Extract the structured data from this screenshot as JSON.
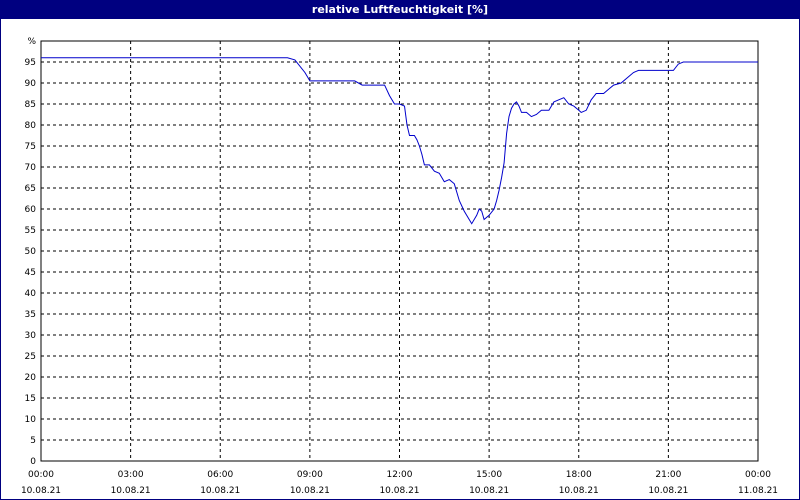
{
  "window": {
    "title": "relative Luftfeuchtigkeit [%]"
  },
  "chart_data": {
    "type": "line",
    "title": "relative Luftfeuchtigkeit [%]",
    "ylabel": "%",
    "ylim": [
      0,
      100
    ],
    "xlim": [
      "2021-08-10 00:00",
      "2021-08-11 00:00"
    ],
    "grid": true,
    "colors": {
      "line": "#0000cc",
      "grid": "#000000",
      "title_bg": "#000080"
    },
    "y_ticks": [
      0,
      5,
      10,
      15,
      20,
      25,
      30,
      35,
      40,
      45,
      50,
      55,
      60,
      65,
      70,
      75,
      80,
      85,
      90,
      95
    ],
    "x_ticks": [
      {
        "time": "00:00",
        "date": "10.08.21"
      },
      {
        "time": "03:00",
        "date": "10.08.21"
      },
      {
        "time": "06:00",
        "date": "10.08.21"
      },
      {
        "time": "09:00",
        "date": "10.08.21"
      },
      {
        "time": "12:00",
        "date": "10.08.21"
      },
      {
        "time": "15:00",
        "date": "10.08.21"
      },
      {
        "time": "18:00",
        "date": "10.08.21"
      },
      {
        "time": "21:00",
        "date": "10.08.21"
      },
      {
        "time": "00:00",
        "date": "11.08.21"
      }
    ],
    "series": [
      {
        "points": [
          [
            "00:00",
            96
          ],
          [
            "08:15",
            96
          ],
          [
            "08:30",
            95.5
          ],
          [
            "08:50",
            92.5
          ],
          [
            "09:00",
            90.5
          ],
          [
            "10:00",
            90.5
          ],
          [
            "10:30",
            90.5
          ],
          [
            "10:45",
            89.5
          ],
          [
            "11:00",
            89.5
          ],
          [
            "11:30",
            89.5
          ],
          [
            "11:40",
            87
          ],
          [
            "11:50",
            85
          ],
          [
            "12:00",
            85
          ],
          [
            "12:10",
            84.5
          ],
          [
            "12:15",
            80
          ],
          [
            "12:20",
            77.5
          ],
          [
            "12:30",
            77.5
          ],
          [
            "12:35",
            76.5
          ],
          [
            "12:40",
            75
          ],
          [
            "12:45",
            73
          ],
          [
            "12:50",
            70.5
          ],
          [
            "13:00",
            70.5
          ],
          [
            "13:10",
            69
          ],
          [
            "13:20",
            68.5
          ],
          [
            "13:30",
            66.5
          ],
          [
            "13:40",
            67
          ],
          [
            "13:50",
            66
          ],
          [
            "14:00",
            62
          ],
          [
            "14:10",
            59.5
          ],
          [
            "14:20",
            57.5
          ],
          [
            "14:25",
            56.5
          ],
          [
            "14:35",
            58.5
          ],
          [
            "14:40",
            60
          ],
          [
            "14:45",
            59.5
          ],
          [
            "14:50",
            57.5
          ],
          [
            "15:00",
            58.5
          ],
          [
            "15:10",
            60
          ],
          [
            "15:15",
            62
          ],
          [
            "15:20",
            64.5
          ],
          [
            "15:25",
            67.5
          ],
          [
            "15:30",
            71
          ],
          [
            "15:35",
            78
          ],
          [
            "15:40",
            82
          ],
          [
            "15:45",
            84
          ],
          [
            "15:50",
            85
          ],
          [
            "15:55",
            85.5
          ],
          [
            "16:00",
            84.5
          ],
          [
            "16:05",
            83
          ],
          [
            "16:15",
            83
          ],
          [
            "16:25",
            82
          ],
          [
            "16:35",
            82.5
          ],
          [
            "16:45",
            83.5
          ],
          [
            "17:00",
            83.5
          ],
          [
            "17:10",
            85.5
          ],
          [
            "17:20",
            86
          ],
          [
            "17:30",
            86.5
          ],
          [
            "17:40",
            85
          ],
          [
            "17:50",
            84.5
          ],
          [
            "18:00",
            83.5
          ],
          [
            "18:05",
            83
          ],
          [
            "18:15",
            83.5
          ],
          [
            "18:25",
            86
          ],
          [
            "18:35",
            87.5
          ],
          [
            "18:50",
            87.5
          ],
          [
            "19:00",
            88.5
          ],
          [
            "19:10",
            89.5
          ],
          [
            "19:25",
            90
          ],
          [
            "19:40",
            91.5
          ],
          [
            "19:50",
            92.5
          ],
          [
            "20:00",
            93
          ],
          [
            "21:00",
            93
          ],
          [
            "21:10",
            93
          ],
          [
            "21:20",
            94.5
          ],
          [
            "21:30",
            95
          ],
          [
            "24:00",
            95
          ]
        ]
      }
    ]
  }
}
